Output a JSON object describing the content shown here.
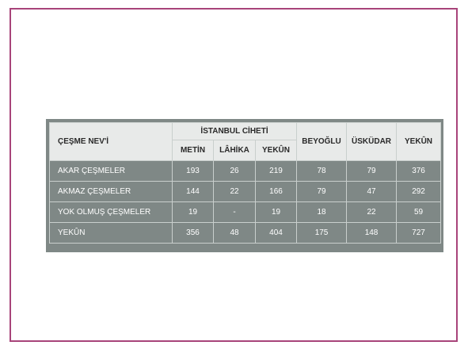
{
  "table": {
    "header": {
      "first": "ÇEŞME NEV'İ",
      "group": "İSTANBUL CİHETİ",
      "sub": [
        "METİN",
        "LÂHİKA",
        "YEKÛN"
      ],
      "cols": [
        "BEYOĞLU",
        "ÜSKÜDAR",
        "YEKÛN"
      ]
    },
    "rows": [
      {
        "label": "AKAR ÇEŞMELER",
        "cells": [
          "193",
          "26",
          "219",
          "78",
          "79",
          "376"
        ]
      },
      {
        "label": "AKMAZ ÇEŞMELER",
        "cells": [
          "144",
          "22",
          "166",
          "79",
          "47",
          "292"
        ]
      },
      {
        "label": "YOK OLMUŞ ÇEŞMELER",
        "cells": [
          "19",
          "-",
          "19",
          "18",
          "22",
          "59"
        ]
      },
      {
        "label": "YEKÛN",
        "cells": [
          "356",
          "48",
          "404",
          "175",
          "148",
          "727"
        ]
      }
    ]
  },
  "colors": {
    "frame_border": "#a8447a",
    "table_body": "#7f8886",
    "header_bg": "#e8eae9"
  }
}
